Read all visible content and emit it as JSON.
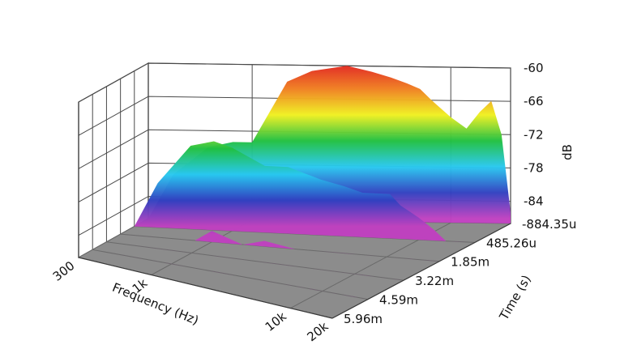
{
  "chart_data": {
    "type": "surface-3d",
    "title": "",
    "xlabel": "Frequency (Hz)",
    "ylabel": "Time (s)",
    "zlabel": "dB",
    "x_scale": "log",
    "x_ticks": [
      {
        "value": 300,
        "label": "300"
      },
      {
        "value": 1000,
        "label": "1k"
      },
      {
        "value": 10000,
        "label": "10k"
      },
      {
        "value": 20000,
        "label": "20k"
      }
    ],
    "y_ticks": [
      {
        "value": -0.00088435,
        "label": "-884.35u"
      },
      {
        "value": 0.00048526,
        "label": "485.26u"
      },
      {
        "value": 0.00185,
        "label": "1.85m"
      },
      {
        "value": 0.00322,
        "label": "3.22m"
      },
      {
        "value": 0.00459,
        "label": "4.59m"
      },
      {
        "value": 0.00596,
        "label": "5.96m"
      }
    ],
    "z_ticks": [
      {
        "value": -60,
        "label": "-60"
      },
      {
        "value": -66,
        "label": "-66"
      },
      {
        "value": -72,
        "label": "-72"
      },
      {
        "value": -78,
        "label": "-78"
      },
      {
        "value": -84,
        "label": "-84"
      },
      {
        "value": -88,
        "label": "-88"
      }
    ],
    "zlim": [
      -88,
      -60
    ],
    "xlim": [
      300,
      20000
    ],
    "ylim": [
      -0.00088435,
      0.00596
    ],
    "grid": true,
    "colormap": [
      "#c040c0",
      "#3040c0",
      "#28c8f0",
      "#20c040",
      "#f0f020",
      "#f08020",
      "#e02020"
    ],
    "floor_color": "#8c8c8c",
    "series": [
      {
        "values": [
          {
            "freq": 300,
            "level": [
              -88,
              -88,
              -88,
              -88,
              -88,
              -88
            ]
          },
          {
            "freq": 400,
            "level": [
              -80,
              -80,
              -88,
              -88,
              -88,
              -88
            ]
          },
          {
            "freq": 600,
            "level": [
              -75,
              -73,
              -88,
              -88,
              -88,
              -88
            ]
          },
          {
            "freq": 800,
            "level": [
              -74,
              -72,
              -88,
              -88,
              -88,
              -88
            ]
          },
          {
            "freq": 1000,
            "level": [
              -74,
              -73,
              -86,
              -88,
              -88,
              -88
            ]
          },
          {
            "freq": 1500,
            "level": [
              -63,
              -76,
              -88,
              -88,
              -88,
              -88
            ]
          },
          {
            "freq": 2000,
            "level": [
              -61,
              -76,
              -87,
              -88,
              -88,
              -88
            ]
          },
          {
            "freq": 3000,
            "level": [
              -60,
              -78,
              -88,
              -88,
              -88,
              -88
            ]
          },
          {
            "freq": 4000,
            "level": [
              -61,
              -79,
              -88,
              -88,
              -88,
              -88
            ]
          },
          {
            "freq": 5000,
            "level": [
              -62,
              -80,
              -88,
              -88,
              -88,
              -88
            ]
          },
          {
            "freq": 6000,
            "level": [
              -63,
              -80,
              -88,
              -88,
              -88,
              -88
            ]
          },
          {
            "freq": 7000,
            "level": [
              -64,
              -80,
              -88,
              -88,
              -88,
              -88
            ]
          },
          {
            "freq": 8000,
            "level": [
              -66,
              -82,
              -88,
              -88,
              -88,
              -88
            ]
          },
          {
            "freq": 10000,
            "level": [
              -69,
              -84,
              -88,
              -88,
              -88,
              -88
            ]
          },
          {
            "freq": 12000,
            "level": [
              -71,
              -86,
              -88,
              -88,
              -88,
              -88
            ]
          },
          {
            "freq": 14000,
            "level": [
              -68,
              -88,
              -88,
              -88,
              -88,
              -88
            ]
          },
          {
            "freq": 16000,
            "level": [
              -66,
              -88,
              -88,
              -88,
              -88,
              -88
            ]
          },
          {
            "freq": 18000,
            "level": [
              -72,
              -88,
              -88,
              -88,
              -88,
              -88
            ]
          },
          {
            "freq": 20000,
            "level": [
              -86,
              -88,
              -88,
              -88,
              -88,
              -88
            ]
          }
        ]
      }
    ]
  }
}
